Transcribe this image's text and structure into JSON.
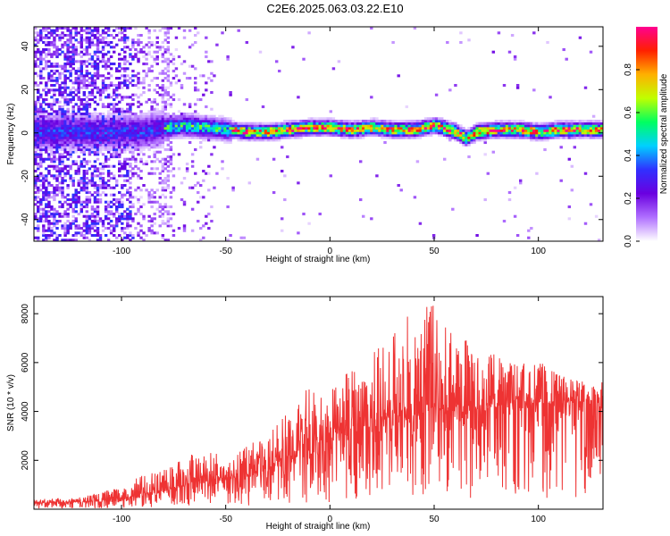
{
  "title": "C2E6.2025.063.03.22.E10",
  "chart_data": [
    {
      "type": "heatmap",
      "xlabel": "Height of straight line (km)",
      "ylabel": "Frequency (Hz)",
      "xlim": [
        -142,
        131
      ],
      "ylim": [
        -50,
        49
      ],
      "xticks": [
        -100,
        -50,
        0,
        50,
        100
      ],
      "yticks": [
        -40,
        -20,
        0,
        20,
        40
      ],
      "colorbar": {
        "label": "Normalized spectral amplitude",
        "range": [
          0,
          1
        ],
        "ticks": [
          0.0,
          0.2,
          0.4,
          0.6,
          0.8
        ],
        "colormap": [
          "#ffffff",
          "#b070ff",
          "#6a00e0",
          "#3030ff",
          "#00d0ff",
          "#00ff60",
          "#c0ff00",
          "#ffb000",
          "#ff2000",
          "#ff0090"
        ]
      },
      "ridge": {
        "x": [
          -100,
          -90,
          -80,
          -70,
          -60,
          -50,
          -40,
          -30,
          -20,
          -10,
          0,
          10,
          20,
          30,
          40,
          50,
          60,
          65,
          70,
          80,
          90,
          100,
          110,
          120,
          131
        ],
        "frequency": [
          0,
          0,
          2,
          3,
          2,
          1,
          0,
          0,
          1,
          2,
          2,
          1,
          2,
          1,
          1,
          3,
          0,
          -3,
          0,
          1,
          1,
          0,
          1,
          1,
          1
        ]
      }
    },
    {
      "type": "line",
      "xlabel": "Height of straight line (km)",
      "ylabel": "SNR (10 * v/v)",
      "xlim": [
        -142,
        131
      ],
      "ylim": [
        0,
        8700
      ],
      "xticks": [
        -100,
        -50,
        0,
        50,
        100
      ],
      "yticks": [
        2000,
        4000,
        6000,
        8000
      ],
      "color": "#ee3333",
      "series": [
        {
          "x": [
            -142,
            -130,
            -120,
            -110,
            -100,
            -90,
            -80,
            -75,
            -70,
            -60,
            -50,
            -40,
            -30,
            -25,
            -20,
            -10,
            0,
            10,
            20,
            30,
            35,
            40,
            50,
            60,
            70,
            80,
            90,
            100,
            110,
            120,
            131
          ],
          "values": [
            250,
            280,
            300,
            350,
            450,
            550,
            700,
            900,
            1000,
            1200,
            1300,
            1400,
            1600,
            2000,
            2200,
            2600,
            2900,
            3200,
            3500,
            3800,
            4100,
            3900,
            4200,
            4000,
            4100,
            4300,
            4500,
            4300,
            4400,
            4400,
            4300
          ],
          "envelope": [
            400,
            450,
            500,
            700,
            900,
            1400,
            1600,
            1800,
            2200,
            2500,
            2200,
            2600,
            3000,
            3500,
            4000,
            5200,
            5000,
            5800,
            6500,
            7000,
            8300,
            8100,
            8600,
            7400,
            6800,
            6400,
            6000,
            6100,
            5500,
            5300,
            5200
          ]
        }
      ]
    }
  ]
}
